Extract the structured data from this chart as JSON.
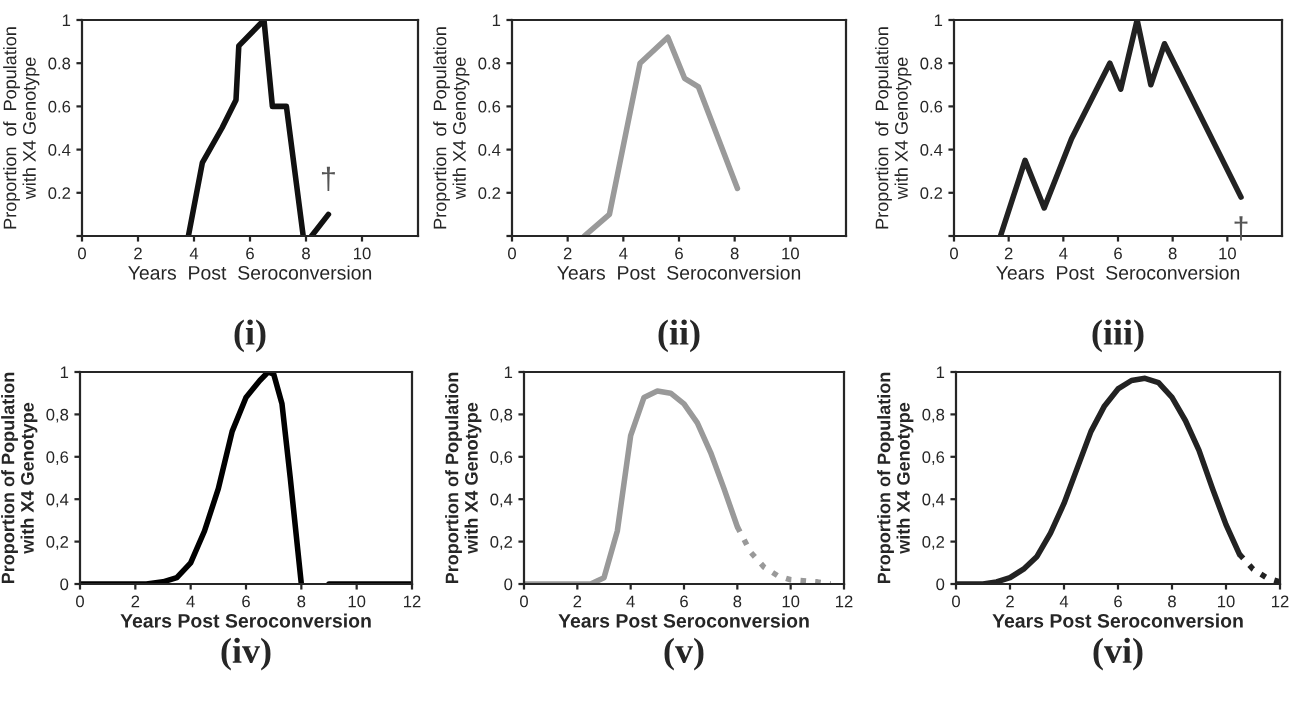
{
  "chart_data": [
    {
      "type": "line",
      "title": "(i)",
      "xlabel": "Years  Post  Seroconversion",
      "ylabel": "Proportion  of  Population\nwith X4 Genotype",
      "xlim": [
        0,
        12
      ],
      "xticks": [
        0,
        2,
        4,
        6,
        8,
        10
      ],
      "ylim": [
        0,
        1
      ],
      "yticks": [
        {
          "value": 0,
          "label": null
        },
        0.2,
        0.4,
        0.6,
        0.8,
        1
      ],
      "grid": false,
      "series": [
        {
          "color": "#111111",
          "x": [
            3.8,
            4.3,
            5.0,
            5.5,
            5.6,
            6.5,
            6.8,
            7.3,
            7.9,
            null,
            8.2,
            8.8
          ],
          "values": [
            0,
            0.34,
            0.5,
            0.63,
            0.88,
            1.0,
            0.6,
            0.6,
            0,
            null,
            0,
            0.1
          ]
        }
      ],
      "annotations": [
        "†"
      ]
    },
    {
      "type": "line",
      "title": "(ii)",
      "xlabel": "Years  Post  Seroconversion",
      "ylabel": "Proportion  of  Population\nwith X4 Genotype",
      "xlim": [
        0,
        12
      ],
      "xticks": [
        0,
        2,
        4,
        6,
        8,
        10
      ],
      "ylim": [
        0,
        1
      ],
      "yticks": [
        {
          "value": 0,
          "label": null
        },
        0.2,
        0.4,
        0.6,
        0.8,
        1
      ],
      "grid": false,
      "series": [
        {
          "color": "#9a9a9a",
          "x": [
            2.6,
            3.5,
            4.6,
            5.6,
            6.2,
            6.7,
            8.1
          ],
          "values": [
            0,
            0.1,
            0.8,
            0.92,
            0.73,
            0.69,
            0.22
          ]
        }
      ]
    },
    {
      "type": "line",
      "title": "(iii)",
      "xlabel": "Years  Post  Seroconversion",
      "ylabel": "Proportion  of  Population\nwith X4 Genotype",
      "xlim": [
        0,
        12
      ],
      "xticks": [
        0,
        2,
        4,
        6,
        8,
        10
      ],
      "ylim": [
        0,
        1
      ],
      "yticks": [
        {
          "value": 0,
          "label": null
        },
        0.2,
        0.4,
        0.6,
        0.8,
        1
      ],
      "grid": false,
      "series": [
        {
          "color": "#222222",
          "x": [
            1.7,
            2.6,
            3.3,
            4.3,
            5.7,
            6.1,
            6.7,
            7.2,
            7.7,
            10.5
          ],
          "values": [
            0,
            0.35,
            0.13,
            0.45,
            0.8,
            0.68,
            1.0,
            0.7,
            0.89,
            0.18
          ]
        }
      ],
      "annotations": [
        "†"
      ]
    },
    {
      "type": "line",
      "title": "(iv)",
      "xlabel": "Years Post Seroconversion",
      "ylabel": "Proportion of Population\nwith X4 Genotype",
      "xlim": [
        0,
        12
      ],
      "xticks": [
        0,
        2,
        4,
        6,
        8,
        10,
        12
      ],
      "ylim": [
        0,
        1
      ],
      "yticks": [
        0,
        {
          "value": 0.2,
          "label": "0,2"
        },
        {
          "value": 0.4,
          "label": "0,4"
        },
        {
          "value": 0.6,
          "label": "0,6"
        },
        {
          "value": 0.8,
          "label": "0,8"
        },
        1
      ],
      "grid": false,
      "series": [
        {
          "color": "#000000",
          "x": [
            0,
            2.4,
            3.0,
            3.5,
            4.0,
            4.5,
            5.0,
            5.5,
            6.0,
            6.5,
            6.8,
            7.0,
            7.3,
            7.6,
            8.0,
            null,
            9.0,
            12.0
          ],
          "values": [
            0,
            0,
            0.01,
            0.03,
            0.1,
            0.25,
            0.45,
            0.72,
            0.88,
            0.96,
            1.0,
            0.99,
            0.85,
            0.5,
            0,
            null,
            0,
            0
          ]
        }
      ]
    },
    {
      "type": "line",
      "title": "(v)",
      "xlabel": "Years Post Seroconversion",
      "ylabel": "Proportion of Population\nwith X4 Genotype",
      "xlim": [
        0,
        12
      ],
      "xticks": [
        0,
        2,
        4,
        6,
        8,
        10,
        12
      ],
      "ylim": [
        0,
        1
      ],
      "yticks": [
        0,
        {
          "value": 0.2,
          "label": "0,2"
        },
        {
          "value": 0.4,
          "label": "0,4"
        },
        {
          "value": 0.6,
          "label": "0,6"
        },
        {
          "value": 0.8,
          "label": "0,8"
        },
        1
      ],
      "grid": false,
      "series": [
        {
          "color": "#999999",
          "line_style": "solid",
          "x": [
            0,
            2.5,
            3.0,
            3.5,
            4.0,
            4.5,
            5.0,
            5.5,
            6.0,
            6.5,
            7.0,
            7.5,
            8.0
          ],
          "values": [
            0,
            0,
            0.03,
            0.25,
            0.7,
            0.88,
            0.91,
            0.9,
            0.85,
            0.76,
            0.62,
            0.45,
            0.27
          ]
        },
        {
          "color": "#999999",
          "line_style": "dotted",
          "x": [
            8.0,
            8.5,
            9.0,
            9.5,
            10.0,
            11.0,
            11.5
          ],
          "values": [
            0.27,
            0.15,
            0.08,
            0.04,
            0.02,
            0.01,
            0
          ]
        }
      ]
    },
    {
      "type": "line",
      "title": "(vi)",
      "xlabel": "Years Post Seroconversion",
      "ylabel": "Proportion of Population\nwith X4 Genotype",
      "xlim": [
        0,
        12
      ],
      "xticks": [
        0,
        2,
        4,
        6,
        8,
        10,
        12
      ],
      "ylim": [
        0,
        1
      ],
      "yticks": [
        0,
        {
          "value": 0.2,
          "label": "0,2"
        },
        {
          "value": 0.4,
          "label": "0,4"
        },
        {
          "value": 0.6,
          "label": "0,6"
        },
        {
          "value": 0.8,
          "label": "0,8"
        },
        1
      ],
      "grid": false,
      "series": [
        {
          "color": "#222222",
          "line_style": "solid",
          "x": [
            0,
            1.0,
            1.5,
            2.0,
            2.5,
            3.0,
            3.5,
            4.0,
            4.5,
            5.0,
            5.5,
            6.0,
            6.5,
            7.0,
            7.5,
            8.0,
            8.5,
            9.0,
            9.5,
            10.0,
            10.5
          ],
          "values": [
            0,
            0,
            0.01,
            0.03,
            0.07,
            0.13,
            0.24,
            0.38,
            0.55,
            0.72,
            0.84,
            0.92,
            0.96,
            0.97,
            0.95,
            0.88,
            0.77,
            0.63,
            0.45,
            0.28,
            0.14
          ]
        },
        {
          "color": "#222222",
          "line_style": "dotted",
          "x": [
            10.5,
            11.0,
            11.5,
            12.0
          ],
          "values": [
            0.14,
            0.07,
            0.03,
            0.01
          ]
        }
      ]
    }
  ]
}
